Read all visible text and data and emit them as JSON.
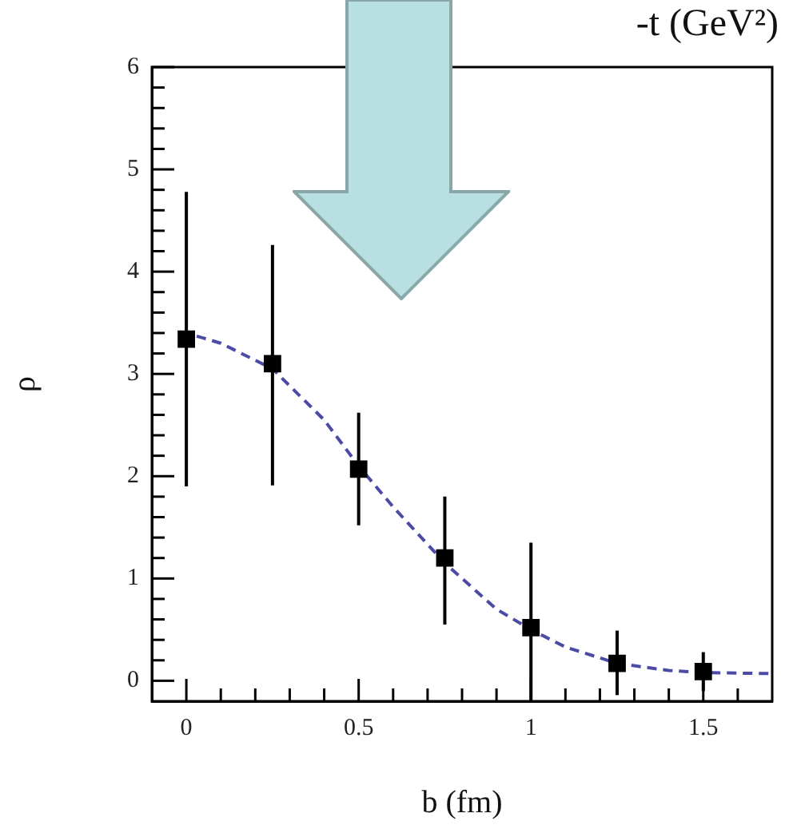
{
  "chart_data": {
    "type": "scatter",
    "xlabel": "b (fm)",
    "ylabel": "ρ",
    "annotations": [
      "-t (GeV²)"
    ],
    "xlim": [
      -0.1,
      1.7
    ],
    "ylim": [
      -0.2,
      6
    ],
    "xticks": [
      0,
      {
        "value": 0.1,
        "label": null
      },
      {
        "value": 0.2,
        "label": null
      },
      {
        "value": 0.3,
        "label": null
      },
      {
        "value": 0.4,
        "label": null
      },
      0.5,
      {
        "value": 0.6,
        "label": null
      },
      {
        "value": 0.7,
        "label": null
      },
      {
        "value": 0.8,
        "label": null
      },
      {
        "value": 0.9,
        "label": null
      },
      1,
      {
        "value": 1.1,
        "label": null
      },
      {
        "value": 1.2,
        "label": null
      },
      {
        "value": 1.3,
        "label": null
      },
      {
        "value": 1.4,
        "label": null
      },
      1.5,
      {
        "value": 1.6,
        "label": null
      }
    ],
    "yticks": [
      0,
      {
        "value": 0.2,
        "label": null
      },
      {
        "value": 0.4,
        "label": null
      },
      {
        "value": 0.6,
        "label": null
      },
      {
        "value": 0.8,
        "label": null
      },
      1,
      {
        "value": 1.2,
        "label": null
      },
      {
        "value": 1.4,
        "label": null
      },
      {
        "value": 1.6,
        "label": null
      },
      {
        "value": 1.8,
        "label": null
      },
      2,
      {
        "value": 2.2,
        "label": null
      },
      {
        "value": 2.4,
        "label": null
      },
      {
        "value": 2.6,
        "label": null
      },
      {
        "value": 2.8,
        "label": null
      },
      3,
      {
        "value": 3.2,
        "label": null
      },
      {
        "value": 3.4,
        "label": null
      },
      {
        "value": 3.6,
        "label": null
      },
      {
        "value": 3.8,
        "label": null
      },
      4,
      {
        "value": 4.2,
        "label": null
      },
      {
        "value": 4.4,
        "label": null
      },
      {
        "value": 4.6,
        "label": null
      },
      {
        "value": 4.8,
        "label": null
      },
      5,
      {
        "value": 5.2,
        "label": null
      },
      {
        "value": 5.4,
        "label": null
      },
      {
        "value": 5.6,
        "label": null
      },
      {
        "value": 5.8,
        "label": null
      },
      6
    ],
    "marker": "square",
    "series": [
      {
        "color": "#000000",
        "x": [
          0,
          0.25,
          0.5,
          0.75,
          1,
          1.25,
          1.5
        ],
        "values": [
          3.34,
          3.1,
          2.07,
          1.2,
          0.52,
          0.17,
          0.09
        ],
        "errors": [
          1.44,
          [
            1.91,
            4.26
          ],
          0.55,
          [
            0.55,
            1.8
          ],
          [
            -0.2,
            1.35
          ],
          [
            -0.14,
            0.49
          ],
          0.19
        ]
      },
      {
        "type": "line",
        "line_style": "dashed",
        "marker": "none",
        "color": "#4b4ba6",
        "x": [
          0.03,
          0.1,
          0.25,
          0.4,
          0.5,
          0.6,
          0.75,
          0.9,
          1,
          1.1,
          1.25,
          1.4,
          1.5,
          1.7
        ],
        "values": [
          3.37,
          3.3,
          3.05,
          2.55,
          2.1,
          1.7,
          1.15,
          0.7,
          0.5,
          0.33,
          0.17,
          0.1,
          0.08,
          0.07
        ]
      }
    ]
  }
}
